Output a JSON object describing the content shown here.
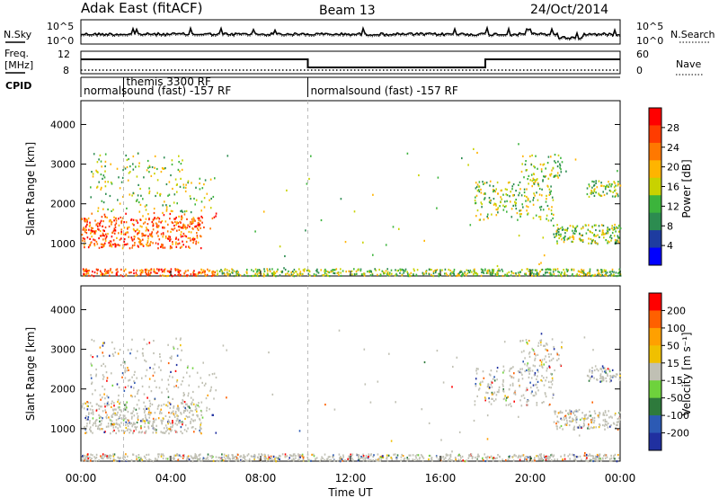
{
  "header": {
    "title": "Adak East (fitACF)",
    "beam": "Beam 13",
    "date": "24/Oct/2014"
  },
  "left_labels": {
    "nsky": "N.Sky",
    "freq": "Freq.",
    "freq_unit": "[MHz]",
    "cpid": "CPID"
  },
  "right_labels": {
    "nsearch": "N.Search",
    "nave": "Nave"
  },
  "noise_panel": {
    "left_ticks": [
      "10^5",
      "10^0"
    ],
    "right_ticks": [
      "10^5",
      "10^0"
    ]
  },
  "freq_panel": {
    "left_ticks": [
      "12",
      "8"
    ],
    "right_ticks": [
      "60",
      "0"
    ],
    "freq_level": 12,
    "nave_level": 0
  },
  "cpid_segments": [
    {
      "label": "normalsound (fast) -157 RF",
      "start_h": 0,
      "end_h": 10.1
    },
    {
      "label": "themis 3300 RF",
      "start_h": 1.9,
      "end_h": 10.1
    },
    {
      "label": "normalsound (fast) -157 RF",
      "start_h": 10.1,
      "end_h": 24
    }
  ],
  "colors": {
    "power_scale": [
      "#0000ff",
      "#1e3ca0",
      "#2c8c50",
      "#3cb43c",
      "#c8d200",
      "#ffb400",
      "#ff7800",
      "#ff3c00",
      "#ff0000"
    ],
    "velocity_scale": [
      "#2030a0",
      "#2c5ab4",
      "#2e7a3c",
      "#6ed23c",
      "#c0c0b4",
      "#f0c000",
      "#ffa000",
      "#ff6000",
      "#ff0000"
    ]
  },
  "chart_data": [
    {
      "type": "heatmap",
      "quantity": "power",
      "ylabel": "Slant Range [km]",
      "ylim": [
        180,
        4600
      ],
      "y_ticks": [
        1000,
        2000,
        3000,
        4000
      ],
      "xlim": [
        0,
        24
      ],
      "x_tick_labels": [
        "00:00",
        "04:00",
        "08:00",
        "12:00",
        "16:00",
        "20:00",
        "00:00"
      ],
      "colorbar_label": "Power [dB]",
      "colorbar_ticks": [
        "28",
        "24",
        "20",
        "16",
        "12",
        "8",
        "4"
      ],
      "colorbar_range": [
        0,
        30
      ]
    },
    {
      "type": "heatmap",
      "quantity": "velocity",
      "ylabel": "Slant Range [km]",
      "ylim": [
        180,
        4600
      ],
      "y_ticks": [
        1000,
        2000,
        3000,
        4000
      ],
      "xlim": [
        0,
        24
      ],
      "x_tick_labels": [
        "00:00",
        "04:00",
        "08:00",
        "12:00",
        "16:00",
        "20:00",
        "00:00"
      ],
      "xlabel": "Time UT",
      "colorbar_label": "Velocity [m s⁻¹]",
      "colorbar_ticks": [
        "200",
        "100",
        "50",
        "15",
        "-15",
        "-50",
        "-100",
        "-200"
      ],
      "colorbar_range": [
        -250,
        250
      ]
    }
  ]
}
